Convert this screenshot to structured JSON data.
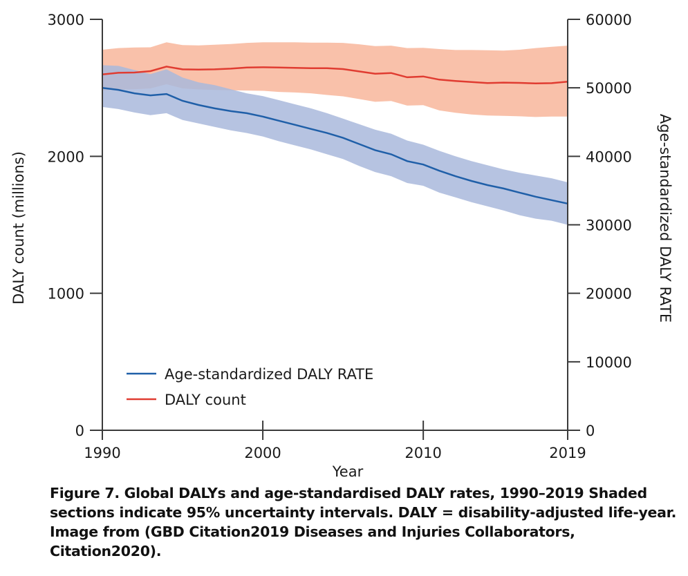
{
  "chart_data": {
    "type": "line",
    "title": "",
    "xlabel": "Year",
    "ylabel_left": "DALY count (millions)",
    "ylabel_right": "Age-standardized DALY RATE",
    "xlim": [
      1990,
      2019
    ],
    "ylim_left": [
      0,
      3000
    ],
    "ylim_right": [
      0,
      60000
    ],
    "x_ticks": [
      "1990",
      "2000",
      "2010",
      "2019"
    ],
    "x_tick_values": [
      1990,
      2000,
      2010,
      2019
    ],
    "y_left_ticks": [
      "0",
      "1000",
      "2000",
      "3000"
    ],
    "y_left_tick_values": [
      0,
      1000,
      2000,
      3000
    ],
    "y_right_ticks": [
      "0",
      "10000",
      "20000",
      "30000",
      "40000",
      "50000",
      "60000"
    ],
    "y_right_tick_values": [
      0,
      10000,
      20000,
      30000,
      40000,
      50000,
      60000
    ],
    "grid": false,
    "legend_position": "bottom-left",
    "x": [
      1990,
      1991,
      1992,
      1993,
      1994,
      1995,
      1996,
      1997,
      1998,
      1999,
      2000,
      2001,
      2002,
      2003,
      2004,
      2005,
      2006,
      2007,
      2008,
      2009,
      2010,
      2011,
      2012,
      2013,
      2014,
      2015,
      2016,
      2017,
      2018,
      2019
    ],
    "series": [
      {
        "name": "Age-standardized DALY RATE",
        "axis": "right",
        "color": "#1f5fa8",
        "band_color": "#a9b8dc",
        "values": [
          50000,
          49700,
          49200,
          48900,
          49100,
          48100,
          47500,
          47000,
          46600,
          46300,
          45800,
          45200,
          44600,
          44000,
          43400,
          42700,
          41800,
          40900,
          40300,
          39300,
          38800,
          37900,
          37100,
          36400,
          35800,
          35300,
          34700,
          34100,
          33600,
          33100
        ],
        "lower": [
          47200,
          46900,
          46400,
          46000,
          46300,
          45300,
          44800,
          44300,
          43800,
          43400,
          42900,
          42200,
          41600,
          41000,
          40300,
          39600,
          38600,
          37700,
          37100,
          36100,
          35700,
          34700,
          34000,
          33300,
          32700,
          32100,
          31400,
          30900,
          30600,
          30000
        ],
        "upper": [
          53300,
          53200,
          52600,
          52000,
          52700,
          51500,
          50800,
          50400,
          49800,
          49200,
          48800,
          48200,
          47600,
          47000,
          46300,
          45500,
          44700,
          43900,
          43300,
          42300,
          41700,
          40800,
          40000,
          39300,
          38700,
          38100,
          37600,
          37200,
          36800,
          36200
        ]
      },
      {
        "name": "DALY count",
        "axis": "left",
        "color": "#e03c31",
        "band_color": "#f9c1aa",
        "values": [
          2598,
          2610,
          2612,
          2622,
          2655,
          2635,
          2633,
          2635,
          2640,
          2648,
          2650,
          2648,
          2646,
          2643,
          2643,
          2637,
          2620,
          2603,
          2608,
          2577,
          2583,
          2560,
          2550,
          2542,
          2535,
          2538,
          2536,
          2532,
          2534,
          2545
        ],
        "lower": [
          2480,
          2488,
          2490,
          2496,
          2526,
          2496,
          2488,
          2484,
          2482,
          2480,
          2478,
          2470,
          2466,
          2460,
          2448,
          2438,
          2418,
          2398,
          2404,
          2370,
          2374,
          2335,
          2318,
          2305,
          2298,
          2295,
          2292,
          2287,
          2290,
          2290
        ],
        "upper": [
          2778,
          2790,
          2795,
          2796,
          2832,
          2812,
          2810,
          2815,
          2820,
          2828,
          2832,
          2832,
          2832,
          2830,
          2830,
          2828,
          2818,
          2805,
          2808,
          2790,
          2792,
          2783,
          2776,
          2776,
          2774,
          2772,
          2778,
          2790,
          2800,
          2808
        ]
      }
    ],
    "legend": [
      {
        "label": "Age-standardized DALY RATE",
        "color": "#1f5fa8"
      },
      {
        "label": "DALY count",
        "color": "#e03c31"
      }
    ]
  },
  "caption": "Figure 7. Global DALYs and age-standardised DALY rates, 1990–2019 Shaded sections indicate 95% uncertainty intervals. DALY = disability-adjusted life-year. Image from (GBD Citation2019 Diseases and Injuries Collaborators, Citation2020)."
}
